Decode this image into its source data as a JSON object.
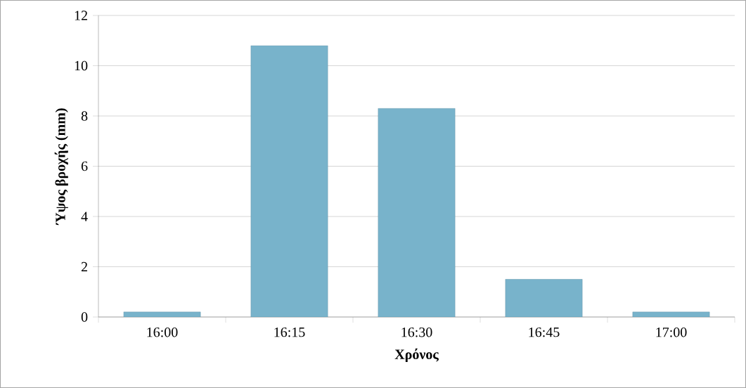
{
  "chart_data": {
    "type": "bar",
    "xlabel": "Χρόνος",
    "ylabel": "Ύψος βροχής (mm)",
    "categories": [
      "16:00",
      "16:15",
      "16:30",
      "16:45",
      "17:00"
    ],
    "values": [
      0.2,
      10.8,
      8.3,
      1.5,
      0.2
    ],
    "color": "#78b3cb",
    "ylim": [
      0,
      12
    ],
    "yticks": [
      0,
      2,
      4,
      6,
      8,
      10,
      12
    ],
    "grid": "y"
  }
}
